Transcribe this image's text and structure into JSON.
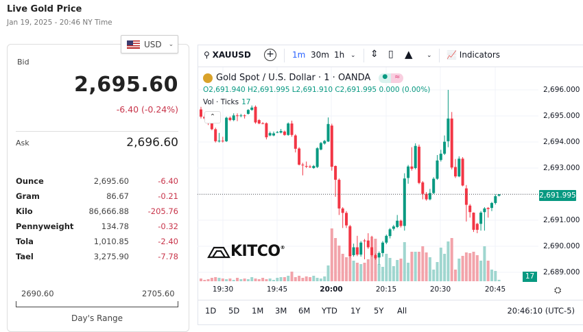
{
  "header": {
    "title": "Live Gold Price",
    "subtitle": "Jan 19, 2025 - 20:46 NY Time"
  },
  "currency": {
    "selected": "USD",
    "icon": "us-flag-icon"
  },
  "quote": {
    "bid_label": "Bid",
    "bid": "2,695.60",
    "change": "-6.40 (-0.24%)",
    "ask_label": "Ask",
    "ask": "2,696.60"
  },
  "units": [
    {
      "name": "Ounce",
      "value": "2,695.60",
      "change": "-6.40"
    },
    {
      "name": "Gram",
      "value": "86.67",
      "change": "-0.21"
    },
    {
      "name": "Kilo",
      "value": "86,666.88",
      "change": "-205.76"
    },
    {
      "name": "Pennyweight",
      "value": "134.78",
      "change": "-0.32"
    },
    {
      "name": "Tola",
      "value": "1,010.85",
      "change": "-2.40"
    },
    {
      "name": "Tael",
      "value": "3,275.90",
      "change": "-7.78"
    }
  ],
  "range": {
    "low": "2690.60",
    "high": "2705.60",
    "label": "Day's Range"
  },
  "toolbar": {
    "symbol": "XAUUSD",
    "intervals": [
      "1m",
      "30m",
      "1h"
    ],
    "active_interval": "1m",
    "indicators": "Indicators"
  },
  "legend": {
    "title": "Gold Spot / U.S. Dollar · 1 · OANDA",
    "ohlc": "O2,691.940 H2,691.995 L2,691.910 C2,691.995 0.000 (0.00%)",
    "vol_label": "Vol · Ticks",
    "vol_value": "17"
  },
  "ranges": [
    "1D",
    "5D",
    "1M",
    "3M",
    "6M",
    "YTD",
    "1Y",
    "5Y",
    "All"
  ],
  "clock": "20:46:10 (UTC-5)",
  "logo": "KITCO",
  "colors": {
    "up": "#089981",
    "down": "#f23645",
    "accent": "#2962ff",
    "negative": "#c8344a"
  },
  "chart_data": {
    "type": "candlestick",
    "x_ticks": [
      "19:30",
      "19:45",
      "20:00",
      "20:15",
      "20:30",
      "20:45"
    ],
    "y_ticks": [
      "2,696.000",
      "2,695.000",
      "2,694.000",
      "2,693.000",
      "2,691.000",
      "2,690.000",
      "2,689.000"
    ],
    "last_price": "2,691.995",
    "last_volume": "17",
    "ylim": [
      2688.7,
      2696.4
    ],
    "candles_ohlc": [
      [
        2695.25,
        2695.35,
        2694.9,
        2694.97
      ],
      [
        2694.97,
        2695.05,
        2694.85,
        2694.9
      ],
      [
        2694.9,
        2694.95,
        2694.65,
        2694.71
      ],
      [
        2694.71,
        2694.78,
        2694.45,
        2694.49
      ],
      [
        2694.49,
        2694.55,
        2693.98,
        2694.03
      ],
      [
        2694.03,
        2694.35,
        2693.98,
        2694.05
      ],
      [
        2694.05,
        2694.2,
        2693.98,
        2694.03
      ],
      [
        2694.03,
        2694.97,
        2694.0,
        2694.93
      ],
      [
        2694.93,
        2694.98,
        2694.8,
        2694.84
      ],
      [
        2694.84,
        2695.1,
        2694.8,
        2695.02
      ],
      [
        2695.02,
        2695.1,
        2694.8,
        2695.0
      ],
      [
        2695.0,
        2695.08,
        2694.95,
        2695.02
      ],
      [
        2695.02,
        2695.06,
        2694.9,
        2695.0
      ],
      [
        2695.08,
        2695.26,
        2695.05,
        2695.23
      ],
      [
        2695.23,
        2695.4,
        2695.2,
        2695.32
      ],
      [
        2695.35,
        2695.4,
        2694.7,
        2694.75
      ],
      [
        2694.84,
        2694.88,
        2694.68,
        2694.71
      ],
      [
        2694.72,
        2694.76,
        2694.68,
        2694.71
      ],
      [
        2694.72,
        2694.75,
        2694.1,
        2694.18
      ],
      [
        2694.25,
        2694.4,
        2694.22,
        2694.34
      ],
      [
        2694.25,
        2694.4,
        2694.22,
        2694.33
      ],
      [
        2694.38,
        2694.42,
        2694.34,
        2694.38
      ],
      [
        2694.36,
        2694.5,
        2694.33,
        2694.42
      ],
      [
        2694.4,
        2694.44,
        2694.24,
        2694.27
      ],
      [
        2694.27,
        2694.75,
        2694.24,
        2694.71
      ],
      [
        2694.71,
        2694.82,
        2694.2,
        2694.27
      ],
      [
        2694.25,
        2694.3,
        2693.6,
        2693.74
      ],
      [
        2693.75,
        2693.8,
        2693.1,
        2693.13
      ],
      [
        2693.13,
        2693.2,
        2692.72,
        2693.12
      ],
      [
        2693.08,
        2693.25,
        2693.0,
        2693.06
      ],
      [
        2693.06,
        2693.12,
        2693.0,
        2693.04
      ],
      [
        2693.0,
        2693.12,
        2692.97,
        2693.08
      ],
      [
        2693.04,
        2693.8,
        2693.0,
        2693.76
      ],
      [
        2693.71,
        2694.0,
        2693.68,
        2693.96
      ],
      [
        2693.94,
        2694.08,
        2693.9,
        2694.04
      ],
      [
        2694.02,
        2694.94,
        2694.0,
        2694.69
      ],
      [
        2694.63,
        2694.7,
        2692.9,
        2693.05
      ],
      [
        2693.08,
        2693.1,
        2691.9,
        2692.55
      ],
      [
        2692.55,
        2692.6,
        2691.2,
        2691.45
      ],
      [
        2691.45,
        2691.5,
        2690.7,
        2691.28
      ],
      [
        2691.28,
        2691.35,
        2690.7,
        2690.8
      ],
      [
        2690.77,
        2690.82,
        2689.55,
        2689.61
      ],
      [
        2689.66,
        2690.1,
        2689.6,
        2689.96
      ],
      [
        2689.96,
        2690.4,
        2689.62,
        2689.68
      ],
      [
        2689.68,
        2690.2,
        2689.6,
        2690.14
      ],
      [
        2690.22,
        2690.28,
        2689.5,
        2690.2
      ],
      [
        2690.22,
        2690.5,
        2689.9,
        2689.96
      ],
      [
        2689.96,
        2690.4,
        2689.6,
        2689.66
      ],
      [
        2689.66,
        2689.72,
        2689.48,
        2689.54
      ],
      [
        2689.57,
        2689.8,
        2689.3,
        2689.74
      ],
      [
        2689.74,
        2690.2,
        2689.6,
        2690.14
      ],
      [
        2690.14,
        2690.45,
        2690.08,
        2690.4
      ],
      [
        2690.39,
        2690.7,
        2690.3,
        2690.65
      ],
      [
        2690.67,
        2690.82,
        2690.6,
        2690.76
      ],
      [
        2690.74,
        2691.2,
        2690.7,
        2690.98
      ],
      [
        2690.98,
        2691.02,
        2690.72,
        2690.78
      ],
      [
        2690.78,
        2692.8,
        2690.6,
        2692.6
      ],
      [
        2692.62,
        2693.12,
        2692.4,
        2693.06
      ],
      [
        2693.06,
        2693.8,
        2692.9,
        2692.97
      ],
      [
        2693.0,
        2693.95,
        2692.95,
        2693.85
      ],
      [
        2693.82,
        2693.9,
        2692.38,
        2692.43
      ],
      [
        2692.45,
        2692.5,
        2691.8,
        2692.01
      ],
      [
        2692.01,
        2692.08,
        2691.75,
        2691.8
      ],
      [
        2691.8,
        2692.2,
        2691.76,
        2692.04
      ],
      [
        2692.04,
        2692.65,
        2692.0,
        2692.59
      ],
      [
        2692.59,
        2693.5,
        2692.55,
        2693.29
      ],
      [
        2693.31,
        2693.7,
        2693.25,
        2693.55
      ],
      [
        2693.55,
        2694.25,
        2693.5,
        2694.01
      ],
      [
        2694.03,
        2696.0,
        2693.8,
        2694.9
      ],
      [
        2694.9,
        2695.15,
        2692.95,
        2693.02
      ],
      [
        2693.04,
        2693.35,
        2692.62,
        2692.68
      ],
      [
        2692.68,
        2693.45,
        2692.65,
        2693.36
      ],
      [
        2693.36,
        2693.42,
        2692.3,
        2692.33
      ],
      [
        2692.22,
        2692.35,
        2690.95,
        2691.59
      ],
      [
        2691.56,
        2691.62,
        2691.1,
        2691.31
      ],
      [
        2691.29,
        2691.3,
        2690.55,
        2690.63
      ],
      [
        2690.86,
        2690.9,
        2690.5,
        2690.63
      ],
      [
        2690.86,
        2691.35,
        2690.6,
        2691.29
      ],
      [
        2691.31,
        2691.5,
        2690.6,
        2691.45
      ],
      [
        2691.47,
        2691.5,
        2691.1,
        2691.43
      ],
      [
        2691.47,
        2691.7,
        2691.35,
        2691.66
      ],
      [
        2691.66,
        2691.995,
        2691.6,
        2691.92
      ],
      [
        2691.94,
        2691.995,
        2691.91,
        2691.995
      ]
    ],
    "volumes": [
      32,
      16,
      24,
      40,
      48,
      40,
      32,
      24,
      32,
      16,
      40,
      24,
      32,
      24,
      48,
      32,
      24,
      40,
      24,
      32,
      16,
      40,
      48,
      48,
      64,
      112,
      48,
      64,
      40,
      56,
      48,
      64,
      40,
      32,
      56,
      184,
      616,
      504,
      416,
      320,
      280,
      280,
      240,
      216,
      200,
      216,
      256,
      520,
      496,
      200,
      168,
      320,
      272,
      176,
      248,
      264,
      456,
      216,
      344,
      344,
      344,
      408,
      336,
      280,
      136,
      224,
      392,
      320,
      464,
      504,
      136,
      264,
      296,
      336,
      328,
      344,
      304,
      240,
      408,
      240,
      136,
      120,
      17
    ]
  }
}
